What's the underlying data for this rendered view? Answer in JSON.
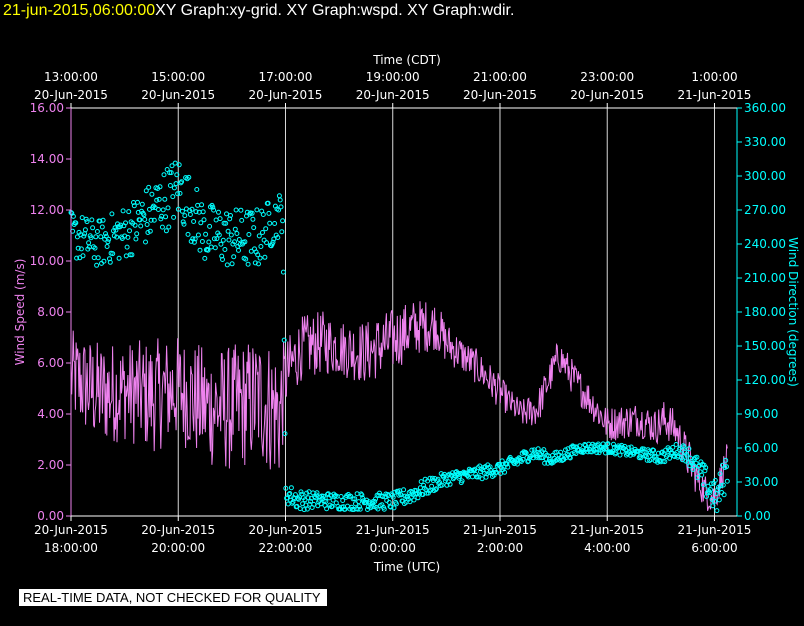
{
  "header": {
    "timestamp": "21-jun-2015,06:00:00",
    "graphs": "XY Graph:xy-grid.  XY Graph:wspd.  XY Graph:wdir."
  },
  "footer": {
    "disclaimer": "REAL-TIME DATA, NOT CHECKED FOR QUALITY"
  },
  "chart_data": {
    "type": "line+scatter",
    "colors": {
      "background": "#000000",
      "grid": "#ffffff",
      "wspd": "#ee82ee",
      "wdir": "#00ffff",
      "title_timestamp": "#ffff00",
      "text": "#ffffff"
    },
    "x_range_hours": [
      0,
      12.42
    ],
    "top_axis": {
      "title": "Time (CDT)",
      "ticks": [
        {
          "x": 0.0,
          "time": "13:00:00",
          "date": "20-Jun-2015"
        },
        {
          "x": 2.0,
          "time": "15:00:00",
          "date": "20-Jun-2015"
        },
        {
          "x": 4.0,
          "time": "17:00:00",
          "date": "20-Jun-2015"
        },
        {
          "x": 6.0,
          "time": "19:00:00",
          "date": "20-Jun-2015"
        },
        {
          "x": 8.0,
          "time": "21:00:00",
          "date": "20-Jun-2015"
        },
        {
          "x": 10.0,
          "time": "23:00:00",
          "date": "20-Jun-2015"
        },
        {
          "x": 12.0,
          "time": "1:00:00",
          "date": "21-Jun-2015"
        }
      ]
    },
    "bottom_axis": {
      "title": "Time (UTC)",
      "ticks": [
        {
          "x": 0.0,
          "date": "20-Jun-2015",
          "time": "18:00:00"
        },
        {
          "x": 2.0,
          "date": "20-Jun-2015",
          "time": "20:00:00"
        },
        {
          "x": 4.0,
          "date": "20-Jun-2015",
          "time": "22:00:00"
        },
        {
          "x": 6.0,
          "date": "21-Jun-2015",
          "time": "0:00:00"
        },
        {
          "x": 8.0,
          "date": "21-Jun-2015",
          "time": "2:00:00"
        },
        {
          "x": 10.0,
          "date": "21-Jun-2015",
          "time": "4:00:00"
        },
        {
          "x": 12.0,
          "date": "21-Jun-2015",
          "time": "6:00:00"
        }
      ]
    },
    "left_axis": {
      "title": "Wind Speed (m/s)",
      "ylim": [
        0,
        16
      ],
      "ticks": [
        0,
        2,
        4,
        6,
        8,
        10,
        12,
        14,
        16
      ],
      "tick_labels": [
        "0.00",
        "2.00",
        "4.00",
        "6.00",
        "8.00",
        "10.00",
        "12.00",
        "14.00",
        "16.00"
      ]
    },
    "right_axis": {
      "title": "Wind Direction (degrees)",
      "ylim": [
        0,
        360
      ],
      "ticks": [
        0,
        30,
        60,
        90,
        120,
        150,
        180,
        210,
        240,
        270,
        300,
        330,
        360
      ],
      "tick_labels": [
        "0.00",
        "30.00",
        "60.00",
        "90.00",
        "120.00",
        "150.00",
        "180.00",
        "210.00",
        "240.00",
        "270.00",
        "300.00",
        "330.00",
        "360.00"
      ]
    },
    "series": [
      {
        "name": "wspd",
        "axis": "left",
        "style": "line",
        "x": [
          0.0,
          0.5,
          1.0,
          1.5,
          2.0,
          2.5,
          3.0,
          3.5,
          3.9,
          4.0,
          4.3,
          4.7,
          5.0,
          5.5,
          6.0,
          6.4,
          6.8,
          7.0,
          7.3,
          7.6,
          7.9,
          8.2,
          8.4,
          8.7,
          8.9,
          9.1,
          9.4,
          9.7,
          10.0,
          10.3,
          10.6,
          10.9,
          11.1,
          11.3,
          11.5,
          11.7,
          11.85,
          12.0,
          12.25
        ],
        "y": [
          5.5,
          4.8,
          4.9,
          4.7,
          5.0,
          4.3,
          4.2,
          4.6,
          4.0,
          5.5,
          6.6,
          6.8,
          6.6,
          6.4,
          6.9,
          7.4,
          7.5,
          6.8,
          6.3,
          5.8,
          5.1,
          4.4,
          4.0,
          4.2,
          5.3,
          6.3,
          5.3,
          4.5,
          3.6,
          3.7,
          3.8,
          3.5,
          3.8,
          3.3,
          2.3,
          1.4,
          0.9,
          0.7,
          2.4
        ],
        "amp": [
          1.3,
          1.5,
          1.4,
          1.6,
          1.5,
          1.7,
          1.8,
          1.8,
          2.0,
          1.0,
          0.9,
          0.9,
          0.8,
          0.9,
          0.9,
          0.8,
          0.7,
          0.6,
          0.5,
          0.5,
          0.5,
          0.4,
          0.4,
          0.5,
          0.5,
          0.5,
          0.5,
          0.5,
          0.5,
          0.5,
          0.5,
          0.5,
          0.6,
          0.5,
          0.6,
          0.5,
          0.5,
          0.5,
          0.4
        ]
      },
      {
        "name": "wdir",
        "axis": "right",
        "style": "scatter",
        "x": [
          0.0,
          0.5,
          1.0,
          1.5,
          2.0,
          2.5,
          3.0,
          3.5,
          3.95,
          4.0,
          4.25,
          4.5,
          5.0,
          5.5,
          6.0,
          6.3,
          6.6,
          7.0,
          7.5,
          8.0,
          8.3,
          8.6,
          9.0,
          9.5,
          10.0,
          10.5,
          11.0,
          11.3,
          11.5,
          11.7,
          11.9,
          12.05,
          12.25
        ],
        "y": [
          248,
          240,
          250,
          268,
          290,
          250,
          245,
          245,
          270,
          20,
          14,
          14,
          13,
          13,
          13,
          18,
          25,
          33,
          37,
          42,
          48,
          56,
          50,
          60,
          60,
          56,
          52,
          58,
          55,
          40,
          25,
          15,
          45
        ],
        "spread": [
          14,
          14,
          16,
          18,
          20,
          18,
          18,
          18,
          12,
          6,
          6,
          5,
          5,
          5,
          5,
          5,
          5,
          4,
          4,
          4,
          4,
          4,
          4,
          3,
          3,
          3,
          4,
          4,
          5,
          8,
          10,
          10,
          12
        ]
      }
    ]
  }
}
